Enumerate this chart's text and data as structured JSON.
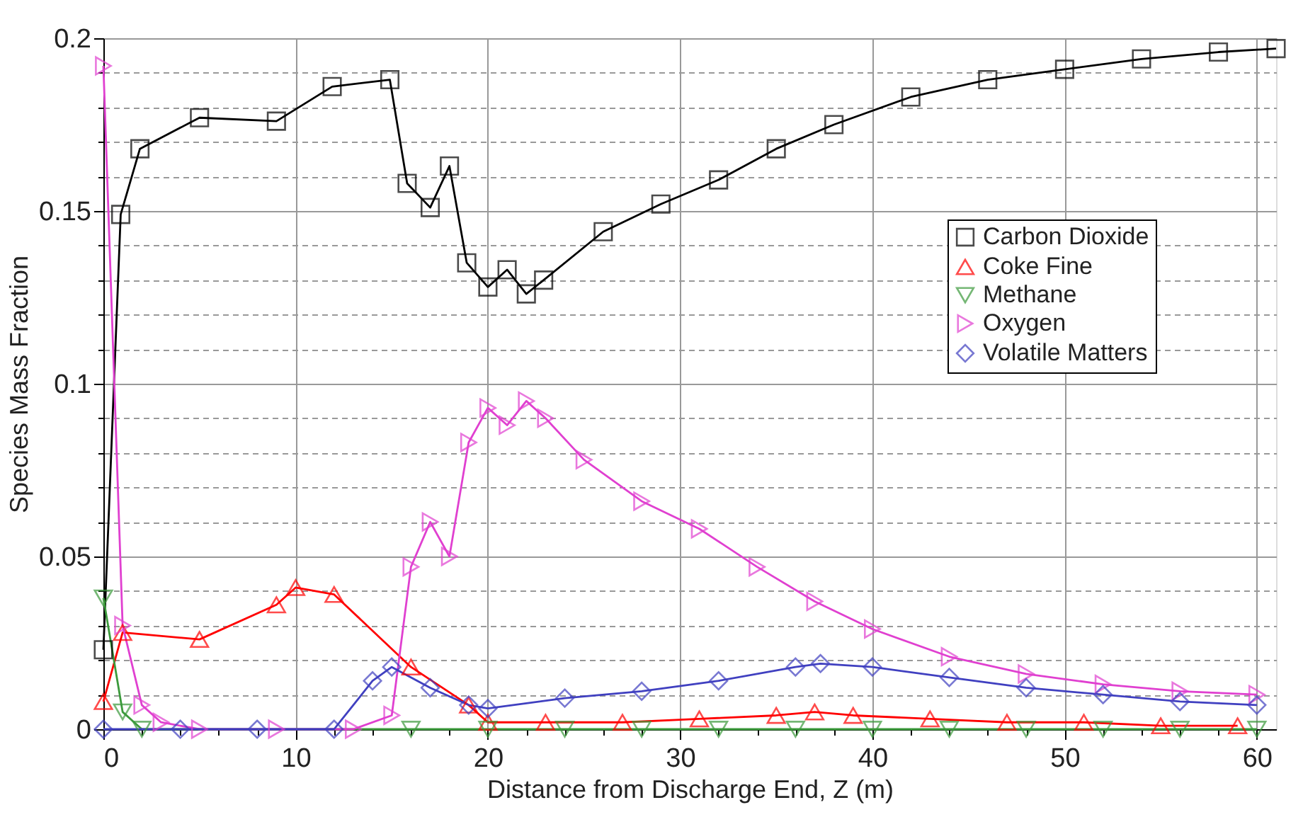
{
  "chart_data": {
    "type": "line",
    "xlabel": "Distance from Discharge End, Z (m)",
    "ylabel": "Species Mass Fraction",
    "xlim": [
      0,
      61
    ],
    "ylim": [
      0,
      0.2
    ],
    "xticks": [
      0,
      {
        "value": 2,
        "label": null
      },
      {
        "value": 4,
        "label": null
      },
      {
        "value": 6,
        "label": null
      },
      {
        "value": 8,
        "label": null
      },
      10,
      {
        "value": 12,
        "label": null
      },
      {
        "value": 14,
        "label": null
      },
      {
        "value": 16,
        "label": null
      },
      {
        "value": 18,
        "label": null
      },
      20,
      {
        "value": 22,
        "label": null
      },
      {
        "value": 24,
        "label": null
      },
      {
        "value": 26,
        "label": null
      },
      {
        "value": 28,
        "label": null
      },
      30,
      {
        "value": 32,
        "label": null
      },
      {
        "value": 34,
        "label": null
      },
      {
        "value": 36,
        "label": null
      },
      {
        "value": 38,
        "label": null
      },
      40,
      {
        "value": 42,
        "label": null
      },
      {
        "value": 44,
        "label": null
      },
      {
        "value": 46,
        "label": null
      },
      {
        "value": 48,
        "label": null
      },
      50,
      {
        "value": 52,
        "label": null
      },
      {
        "value": 54,
        "label": null
      },
      {
        "value": 56,
        "label": null
      },
      {
        "value": 58,
        "label": null
      },
      60
    ],
    "yticks": [
      0,
      {
        "value": 0.01,
        "label": null
      },
      {
        "value": 0.02,
        "label": null
      },
      {
        "value": 0.03,
        "label": null
      },
      {
        "value": 0.04,
        "label": null
      },
      0.05,
      {
        "value": 0.06,
        "label": null
      },
      {
        "value": 0.07,
        "label": null
      },
      {
        "value": 0.08,
        "label": null
      },
      {
        "value": 0.09,
        "label": null
      },
      0.1,
      {
        "value": 0.11,
        "label": null
      },
      {
        "value": 0.12,
        "label": null
      },
      {
        "value": 0.13,
        "label": null
      },
      {
        "value": 0.14,
        "label": null
      },
      0.15,
      {
        "value": 0.16,
        "label": null
      },
      {
        "value": 0.17,
        "label": null
      },
      {
        "value": 0.18,
        "label": null
      },
      {
        "value": 0.19,
        "label": null
      },
      0.2
    ],
    "grid": true,
    "legend": "right",
    "line_style": "solid",
    "series": [
      {
        "name": "Carbon Dioxide",
        "color": "#000000",
        "marker": "square",
        "x": [
          0,
          0.9,
          1.9,
          5,
          9,
          11.9,
          14.9,
          15.8,
          17,
          18,
          18.9,
          20,
          21,
          22,
          22.9,
          26,
          29,
          32,
          35,
          38,
          42,
          46,
          50,
          54,
          58,
          61
        ],
        "values": [
          0.023,
          0.149,
          0.168,
          0.177,
          0.176,
          0.186,
          0.188,
          0.158,
          0.151,
          0.163,
          0.135,
          0.128,
          0.133,
          0.126,
          0.13,
          0.144,
          0.152,
          0.159,
          0.168,
          0.175,
          0.183,
          0.188,
          0.191,
          0.194,
          0.196,
          0.197
        ]
      },
      {
        "name": "Coke Fine",
        "color": "#ff0000",
        "marker": "triangle",
        "x": [
          0,
          1,
          5,
          9,
          10,
          12,
          16,
          19,
          20,
          23,
          27,
          31,
          35,
          37,
          39,
          43,
          47,
          51,
          55,
          59
        ],
        "values": [
          0.008,
          0.028,
          0.026,
          0.036,
          0.041,
          0.039,
          0.018,
          0.007,
          0.002,
          0.002,
          0.002,
          0.003,
          0.004,
          0.005,
          0.004,
          0.003,
          0.002,
          0.002,
          0.001,
          0.001
        ]
      },
      {
        "name": "Methane",
        "color": "#3c9a3c",
        "marker": "triangle-down",
        "x": [
          0,
          1,
          2,
          16,
          20,
          24,
          28,
          32,
          36,
          40,
          44,
          48,
          52,
          56,
          60
        ],
        "values": [
          0.038,
          0.005,
          0,
          0,
          0,
          0,
          0,
          0,
          0,
          0,
          0,
          0,
          0,
          0,
          0
        ]
      },
      {
        "name": "Oxygen",
        "color": "#e040d0",
        "marker": "triangle-right",
        "x": [
          0,
          1,
          2,
          3,
          5,
          9,
          13,
          15,
          16,
          17,
          18,
          19,
          20,
          21,
          22,
          23,
          25,
          28,
          31,
          34,
          37,
          40,
          44,
          48,
          52,
          56,
          60
        ],
        "values": [
          0.192,
          0.03,
          0.007,
          0.002,
          0,
          0,
          0,
          0.004,
          0.047,
          0.06,
          0.05,
          0.083,
          0.093,
          0.088,
          0.095,
          0.09,
          0.078,
          0.066,
          0.058,
          0.047,
          0.037,
          0.029,
          0.021,
          0.016,
          0.013,
          0.011,
          0.01
        ]
      },
      {
        "name": "Volatile Matters",
        "color": "#4040c0",
        "marker": "diamond",
        "x": [
          0,
          4,
          8,
          12,
          14,
          15,
          17,
          19,
          20,
          24,
          28,
          32,
          36,
          37.3,
          40,
          44,
          48,
          52,
          56,
          60
        ],
        "values": [
          0,
          0,
          0,
          0,
          0.014,
          0.018,
          0.012,
          0.007,
          0.006,
          0.009,
          0.011,
          0.014,
          0.018,
          0.019,
          0.018,
          0.015,
          0.012,
          0.01,
          0.008,
          0.007
        ]
      }
    ]
  }
}
